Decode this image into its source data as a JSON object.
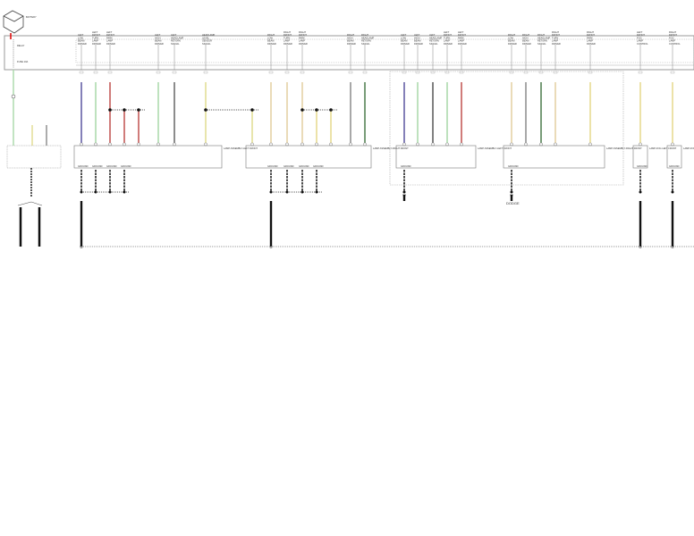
{
  "battery": {
    "label": "BATTERY",
    "icon": "battery-icon"
  },
  "module": {
    "fuses": [
      "FUSE 10A",
      "FUSE 10A",
      "FUSE 10A"
    ],
    "relay_label": "RELAY"
  },
  "circuits": [
    {
      "label": "LEFT LOW BEAM DRIVER",
      "color": "#5a55a0"
    },
    {
      "label": "LEFT FRONT TURN LAMP DRIVER",
      "color": "#a8d8a8"
    },
    {
      "label": "LEFT FRONT PARK LAMP DRIVER",
      "color": "#c0504d"
    },
    {
      "label": "LEFT FRONT PARK LAMP DRIVER",
      "color": "#c0504d"
    },
    {
      "label": "LEFT FRONT PARK LAMP DRIVER",
      "color": "#c0504d"
    },
    {
      "label": "LEFT HIGH BEAM DRIVER",
      "color": "#a8d8a8"
    },
    {
      "label": "LEFT HEADLAMP RETURN SIGNAL",
      "color": "#666666"
    },
    {
      "label": "HEADLAMP LEVEL SENSOR SIGNAL",
      "color": "#e0dc90"
    },
    {
      "label": "HEADLAMP LEVEL SENSOR SIGNAL",
      "color": "#e0dc90"
    },
    {
      "label": "RIGHT LOW BEAM DRIVER",
      "color": "#e2cfa0"
    },
    {
      "label": "RIGHT FRONT TURN LAMP DRIVER",
      "color": "#e2cfa0"
    },
    {
      "label": "RIGHT FRONT PARK LAMP DRIVER",
      "color": "#e2cfa0"
    },
    {
      "label": "RIGHT FRONT PARK LAMP DRIVER",
      "color": "#e6d88a"
    },
    {
      "label": "RIGHT FRONT PARK LAMP DRIVER",
      "color": "#e6d88a"
    },
    {
      "label": "RIGHT HIGH BEAM DRIVER",
      "color": "#8a8a8a"
    },
    {
      "label": "RIGHT HEADLAMP RETURN SIGNAL",
      "color": "#4a7a4a"
    },
    {
      "label": "LEFT LOW BEAM DRIVER",
      "color": "#5a55a0"
    },
    {
      "label": "LEFT HIGH BEAM DRIVER",
      "color": "#a8d8a8"
    },
    {
      "label": "LEFT HEADLAMP RETURN SIGNAL",
      "color": "#555555"
    },
    {
      "label": "LEFT FRONT TURN LAMP DRIVER",
      "color": "#a8d8a8"
    },
    {
      "label": "LEFT FRONT PARK LAMP DRIVER",
      "color": "#c0504d"
    },
    {
      "label": "RIGHT LOW BEAM DRIVER",
      "color": "#e2cfa0"
    },
    {
      "label": "RIGHT HIGH BEAM DRIVER",
      "color": "#8a8a8a"
    },
    {
      "label": "RIGHT HEADLAMP RETURN SIGNAL",
      "color": "#4a7a4a"
    },
    {
      "label": "RIGHT FRONT TURN LAMP DRIVER",
      "color": "#e2cfa0"
    },
    {
      "label": "RIGHT FRONT PARK LAMP DRIVER",
      "color": "#e6d88a"
    },
    {
      "label": "LEFT FRONT FOG LAMP CONTROL",
      "color": "#e6d88a"
    },
    {
      "label": "RIGHT FRONT FOG LAMP CONTROL",
      "color": "#e6d88a"
    }
  ],
  "components": [
    {
      "label": "LAMP ASSEMBLY-LEFT FRONT"
    },
    {
      "label": "LAMP ASSEMBLY-RIGHT FRONT"
    },
    {
      "label": "LAMP ASSEMBLY-LEFT FRONT"
    },
    {
      "label": "LAMP ASSEMBLY-RIGHT FRONT"
    },
    {
      "label": "LAMP-FOG LEFT FRONT"
    },
    {
      "label": "LAMP-FOG RIGHT FRONT"
    }
  ],
  "ground_label": "GROUND",
  "variant_label": "DODGE",
  "ground_ids": [
    "G100",
    "G101",
    "G102",
    "G103"
  ]
}
